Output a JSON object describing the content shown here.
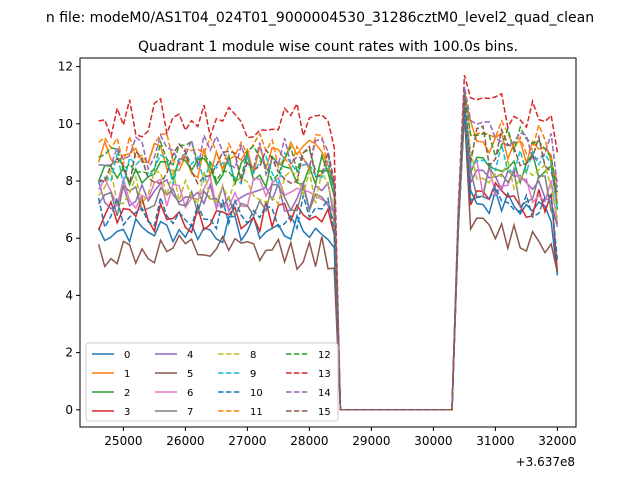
{
  "chart_data": {
    "type": "line",
    "suptitle": "n file: modeM0/AS1T04_024T01_9000004530_31286cztM0_level2_quad_clean",
    "title": "Quadrant 1 module wise count rates with 100.0s bins.",
    "xlabel": "",
    "ylabel": "",
    "x_offset_label": "+3.637e8",
    "xlim": [
      24300,
      32300
    ],
    "ylim": [
      -0.6,
      12.3
    ],
    "xticks": [
      25000,
      26000,
      27000,
      28000,
      29000,
      30000,
      31000,
      32000
    ],
    "yticks": [
      0,
      2,
      4,
      6,
      8,
      10,
      12
    ],
    "grid": false,
    "legend_position": "lower-left",
    "legend_columns": 4,
    "x_start": 24600,
    "x_step": 100,
    "gap_start": 28500,
    "gap_end": 30300,
    "x_end": 32000,
    "series": [
      {
        "name": "0",
        "color": "#1f77b4",
        "style": "solid",
        "pre": 6.3,
        "post": 6.9,
        "amp": 0.25,
        "peak": 10.9,
        "end": 4.7
      },
      {
        "name": "1",
        "color": "#ff7f0e",
        "style": "solid",
        "pre": 8.8,
        "post": 9.0,
        "amp": 0.35,
        "peak": 11.0,
        "end": 7.2
      },
      {
        "name": "2",
        "color": "#2ca02c",
        "style": "solid",
        "pre": 8.3,
        "post": 8.3,
        "amp": 0.3,
        "peak": 10.8,
        "end": 7.0
      },
      {
        "name": "3",
        "color": "#d62728",
        "style": "solid",
        "pre": 6.8,
        "post": 7.0,
        "amp": 0.3,
        "peak": 10.6,
        "end": 4.8
      },
      {
        "name": "4",
        "color": "#9467bd",
        "style": "solid",
        "pre": 7.5,
        "post": 7.6,
        "amp": 0.3,
        "peak": 10.5,
        "end": 6.4
      },
      {
        "name": "5",
        "color": "#8c564b",
        "style": "solid",
        "pre": 5.5,
        "post": 5.8,
        "amp": 0.3,
        "peak": 10.4,
        "end": 4.8
      },
      {
        "name": "6",
        "color": "#e377c2",
        "style": "solid",
        "pre": 7.6,
        "post": 7.7,
        "amp": 0.3,
        "peak": 10.5,
        "end": 6.5
      },
      {
        "name": "7",
        "color": "#7f7f7f",
        "style": "solid",
        "pre": 7.3,
        "post": 7.5,
        "amp": 0.3,
        "peak": 10.4,
        "end": 6.5
      },
      {
        "name": "8",
        "color": "#bcbd22",
        "style": "dashed",
        "pre": 7.8,
        "post": 8.0,
        "amp": 0.3,
        "peak": 10.7,
        "end": 6.7
      },
      {
        "name": "9",
        "color": "#17becf",
        "style": "dashed",
        "pre": 8.4,
        "post": 8.5,
        "amp": 0.3,
        "peak": 10.8,
        "end": 7.0
      },
      {
        "name": "10",
        "color": "#1f77b4",
        "style": "dashed",
        "pre": 6.9,
        "post": 7.1,
        "amp": 0.3,
        "peak": 10.6,
        "end": 5.2
      },
      {
        "name": "11",
        "color": "#ff7f0e",
        "style": "dashed",
        "pre": 9.0,
        "post": 9.2,
        "amp": 0.35,
        "peak": 11.2,
        "end": 8.0
      },
      {
        "name": "12",
        "color": "#2ca02c",
        "style": "dashed",
        "pre": 8.7,
        "post": 9.0,
        "amp": 0.35,
        "peak": 11.1,
        "end": 7.6
      },
      {
        "name": "13",
        "color": "#d62728",
        "style": "dashed",
        "pre": 10.2,
        "post": 10.1,
        "amp": 0.35,
        "peak": 11.7,
        "end": 9.0
      },
      {
        "name": "14",
        "color": "#9467bd",
        "style": "dashed",
        "pre": 8.9,
        "post": 9.1,
        "amp": 0.35,
        "peak": 11.3,
        "end": 7.8
      },
      {
        "name": "15",
        "color": "#8c564b",
        "style": "dashed",
        "pre": 8.6,
        "post": 8.8,
        "amp": 0.35,
        "peak": 11.0,
        "end": 7.5
      }
    ]
  }
}
